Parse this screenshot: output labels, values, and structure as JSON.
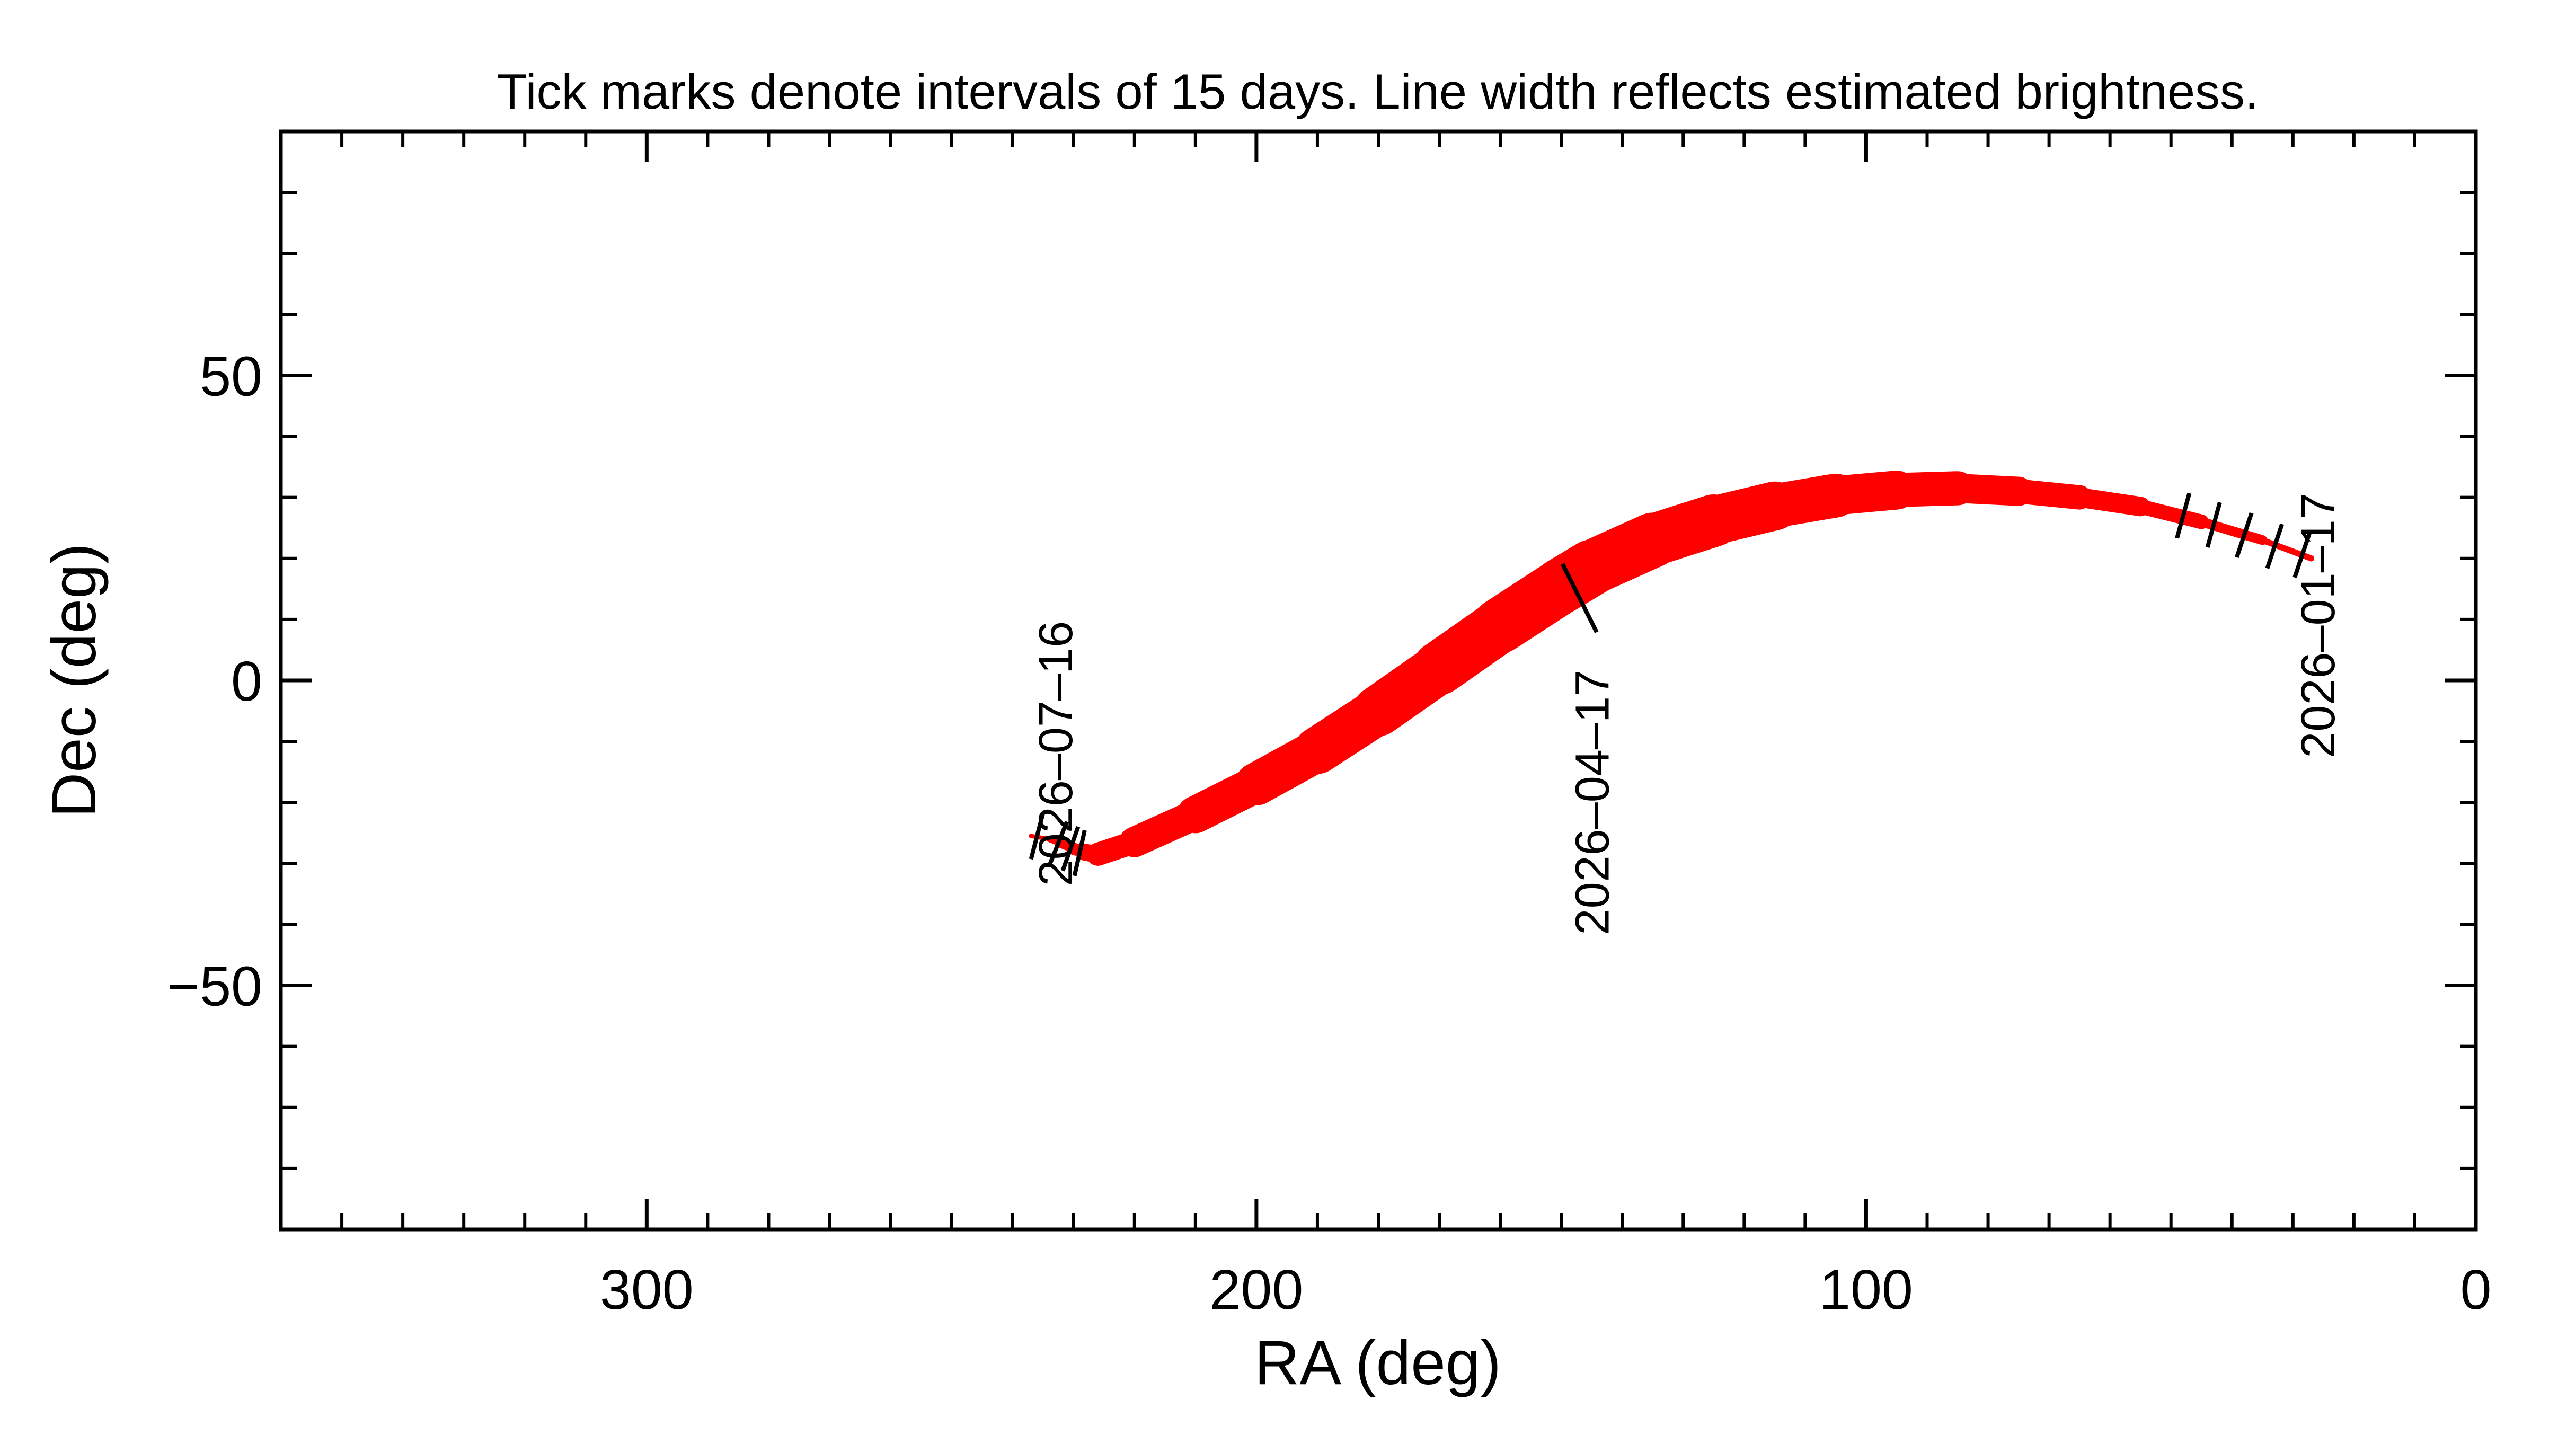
{
  "chart_data": {
    "type": "line",
    "title": "Tick marks denote intervals of 15 days.  Line width reflects estimated brightness.",
    "xlabel": "RA (deg)",
    "ylabel": "Dec (deg)",
    "xlim": [
      360,
      0
    ],
    "ylim": [
      -90,
      90
    ],
    "x_ticks": [
      300,
      200,
      100,
      0
    ],
    "y_ticks": [
      50,
      0,
      -50
    ],
    "x_tick_labels": [
      "300",
      "200",
      "100",
      "0"
    ],
    "y_tick_labels": [
      "50",
      "0",
      "−50"
    ],
    "grid": false,
    "line_color": "#ff0000",
    "series": [
      {
        "ra": [
          27,
          35,
          45,
          55,
          65,
          75,
          85,
          95,
          105,
          115,
          125,
          135,
          145,
          150,
          160,
          170,
          180,
          190,
          200,
          210,
          220,
          226,
          228,
          230,
          232,
          234,
          237
        ],
        "dec": [
          20,
          23,
          26,
          28.5,
          30,
          31,
          31.5,
          31.2,
          30.3,
          28.6,
          26.2,
          23,
          18.5,
          15.5,
          9,
          2,
          -5,
          -11.5,
          -17,
          -22,
          -26.5,
          -28.5,
          -28.2,
          -27.6,
          -26.8,
          -26,
          -25.5
        ],
        "width": [
          2,
          3,
          5,
          7,
          9,
          11,
          13,
          15,
          17,
          19,
          21,
          22,
          23,
          23,
          22.5,
          21.5,
          20,
          18.5,
          16.5,
          14,
          11,
          8,
          6,
          4,
          3,
          2,
          1.5
        ]
      }
    ],
    "date_ticks": [
      {
        "ra": 28.5,
        "dec": 20.5
      },
      {
        "ra": 33,
        "dec": 22
      },
      {
        "ra": 38,
        "dec": 23.8
      },
      {
        "ra": 43,
        "dec": 25.5
      },
      {
        "ra": 48,
        "dec": 27
      },
      {
        "ra": 147,
        "dec": 13.5
      },
      {
        "ra": 229,
        "dec": -28.3
      },
      {
        "ra": 230.5,
        "dec": -27.6
      },
      {
        "ra": 232.5,
        "dec": -26.7
      },
      {
        "ra": 236,
        "dec": -25.6
      }
    ],
    "date_labels": [
      {
        "text": "2026–01–17",
        "ra": 26,
        "dec": 9
      },
      {
        "text": "2026–04–17",
        "ra": 145,
        "dec": -20
      },
      {
        "text": "2026–07–16",
        "ra": 233,
        "dec": -12
      }
    ]
  }
}
